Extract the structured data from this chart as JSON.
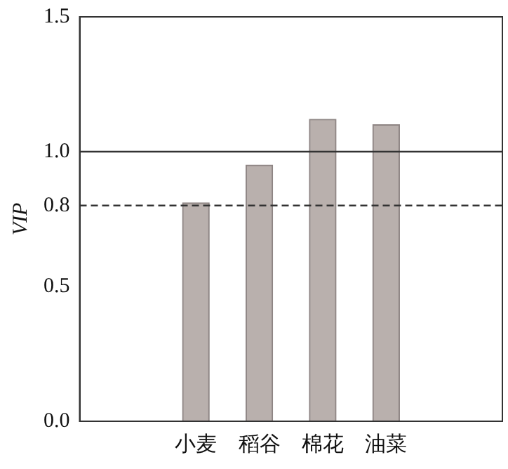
{
  "chart_data": {
    "type": "bar",
    "ylabel": "VIP",
    "categories": [
      "小麦",
      "稻谷",
      "棉花",
      "油菜"
    ],
    "values": [
      0.81,
      0.95,
      1.12,
      1.1
    ],
    "color": "#b9b0ad",
    "ylim": [
      0,
      1.5
    ],
    "yticks": [
      {
        "value": 0,
        "label": "0.0"
      },
      0.5,
      0.8,
      {
        "value": 1,
        "label": "1.0"
      },
      1.5
    ],
    "grid": false,
    "legend": false,
    "ref_lines": [
      {
        "axis": "y",
        "value": 1,
        "color": "#333333",
        "line_style": "solid"
      },
      {
        "axis": "y",
        "value": 0.8,
        "color": "#333333",
        "line_style": "dashed"
      }
    ]
  }
}
